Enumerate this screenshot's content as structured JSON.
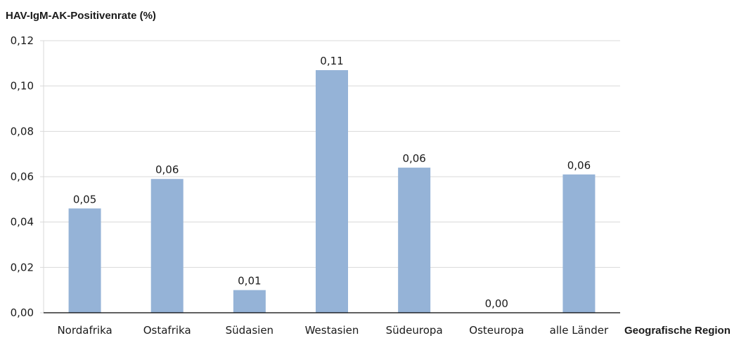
{
  "chart_data": {
    "type": "bar",
    "title": "HAV-IgM-AK-Positivenrate (%)",
    "xlabel": "Geografische Region",
    "ylabel": "",
    "categories": [
      "Nordafrika",
      "Ostafrika",
      "Südasien",
      "Westasien",
      "Südeuropa",
      "Osteuropa",
      "alle Länder"
    ],
    "values": [
      0.046,
      0.059,
      0.01,
      0.107,
      0.064,
      0.0,
      0.061
    ],
    "data_labels": [
      "0,05",
      "0,06",
      "0,01",
      "0,11",
      "0,06",
      "0,00",
      "0,06"
    ],
    "ylim": [
      0,
      0.12
    ],
    "yticks": [
      0,
      0.02,
      0.04,
      0.06,
      0.08,
      0.1,
      0.12
    ],
    "ytick_labels": [
      "0,00",
      "0,02",
      "0,04",
      "0,06",
      "0,08",
      "0,10",
      "0,12"
    ],
    "grid": true,
    "legend": "none",
    "colors": {
      "bar": "#95b3d7",
      "grid": "#d9d9d9",
      "axis": "#000000"
    }
  }
}
